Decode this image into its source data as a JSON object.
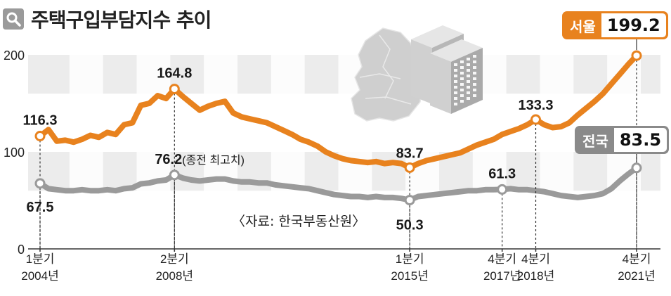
{
  "title": "주택구입부담지수 추이",
  "source": "〈자료: 한국부동산원〉",
  "colors": {
    "seoul": "#e8821e",
    "national": "#9a9a9a",
    "band": "#ececec",
    "column": "#fafafa"
  },
  "chart_data": {
    "type": "line",
    "title": "주택구입부담지수 추이",
    "ylim": [
      0,
      240
    ],
    "yticks": [
      0,
      100,
      200
    ],
    "x_ticks": [
      {
        "idx": 0,
        "q": "1분기",
        "year": "2004년"
      },
      {
        "idx": 16,
        "q": "2분기",
        "year": "2008년"
      },
      {
        "idx": 44,
        "q": "1분기",
        "year": "2015년"
      },
      {
        "idx": 55,
        "q": "4분기",
        "year": "2017년"
      },
      {
        "idx": 59,
        "q": "4분기",
        "year": "2018년"
      },
      {
        "idx": 71,
        "q": "4분기",
        "year": "2021년"
      }
    ],
    "series": [
      {
        "name": "서울",
        "values": [
          116.3,
          123,
          111,
          112,
          110,
          113,
          117,
          115,
          120,
          118,
          128,
          130,
          148,
          150,
          158,
          155,
          164.8,
          157,
          150,
          143,
          147,
          150,
          152,
          140,
          136,
          134,
          132,
          130,
          126,
          122,
          118,
          113,
          110,
          106,
          100,
          96,
          93,
          91,
          90,
          89,
          90,
          88,
          89,
          88,
          83.7,
          88,
          91,
          93,
          95,
          97,
          99,
          103,
          107,
          110,
          113,
          118,
          121,
          124,
          128,
          133.3,
          128,
          125,
          126,
          130,
          138,
          145,
          152,
          160,
          170,
          180,
          190,
          199.2
        ]
      },
      {
        "name": "전국",
        "values": [
          67.5,
          62,
          61,
          60,
          60,
          61,
          60,
          60,
          61,
          60,
          62,
          63,
          67,
          68,
          70,
          71,
          76.2,
          73,
          71,
          70,
          71,
          72,
          72,
          70,
          69,
          69,
          68,
          68,
          66,
          65,
          64,
          63,
          62,
          60,
          58,
          56,
          55,
          54,
          54,
          53,
          54,
          53,
          53,
          52,
          50.3,
          54,
          55,
          56,
          57,
          58,
          59,
          60,
          60,
          61,
          61,
          61.3,
          62,
          61,
          61,
          60,
          59,
          57,
          55,
          54,
          53,
          54,
          55,
          57,
          62,
          70,
          77,
          83.5
        ]
      }
    ],
    "annotations": [
      {
        "series": 0,
        "idx": 0,
        "label": "116.3"
      },
      {
        "series": 0,
        "idx": 16,
        "label": "164.8"
      },
      {
        "series": 0,
        "idx": 44,
        "label": "83.7"
      },
      {
        "series": 0,
        "idx": 59,
        "label": "133.3"
      },
      {
        "series": 1,
        "idx": 0,
        "label": "67.5"
      },
      {
        "series": 1,
        "idx": 16,
        "label": "76.2(종전 최고치)"
      },
      {
        "series": 1,
        "idx": 44,
        "label": "50.3"
      },
      {
        "series": 1,
        "idx": 55,
        "label": "61.3"
      }
    ],
    "end_badges": [
      {
        "series": 0,
        "name": "서울",
        "value": "199.2"
      },
      {
        "series": 1,
        "name": "전국",
        "value": "83.5"
      }
    ]
  }
}
